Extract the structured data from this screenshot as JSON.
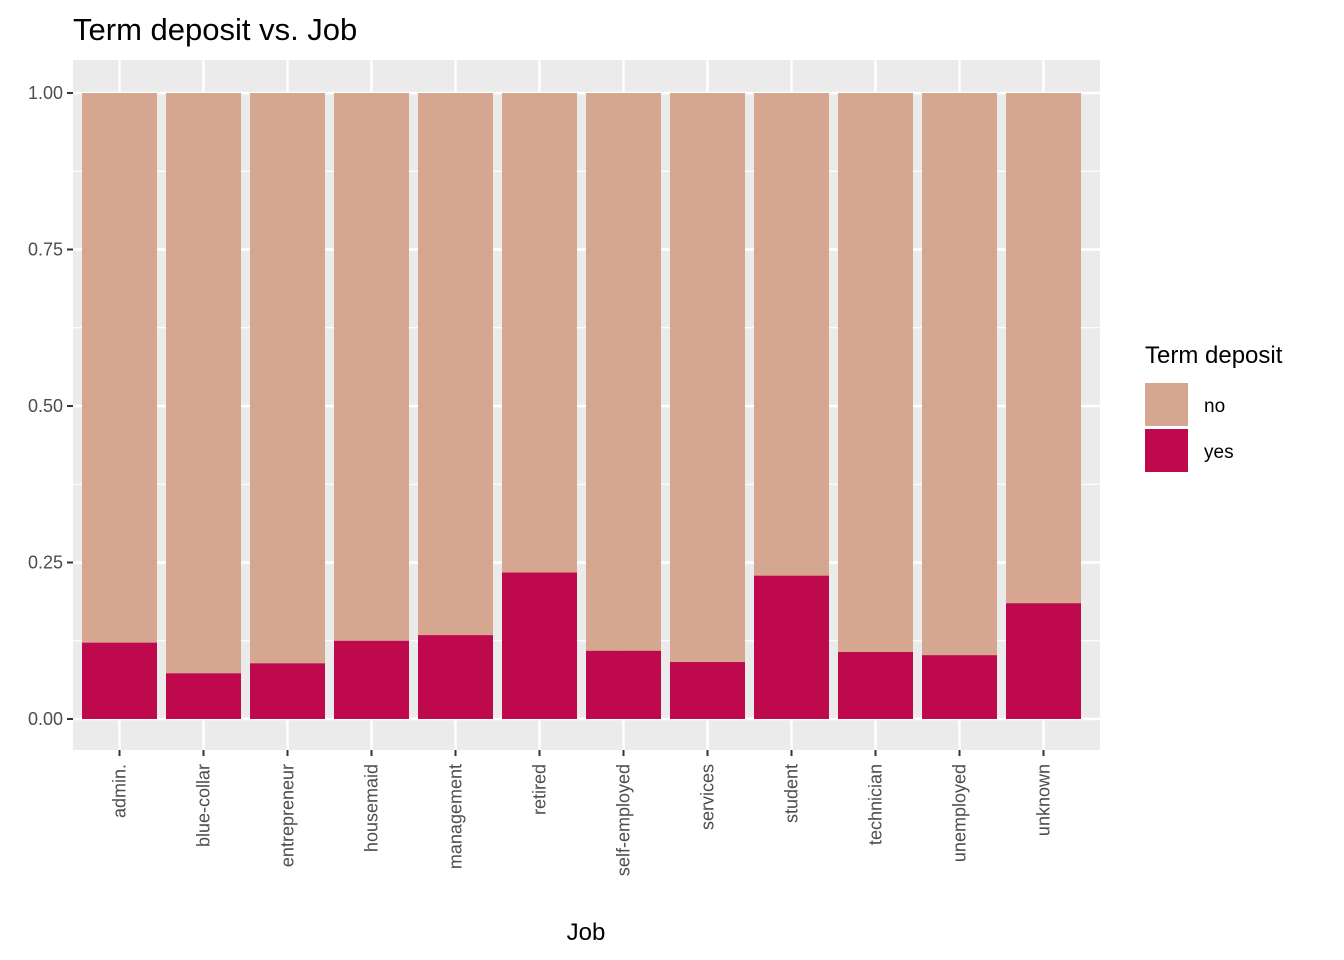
{
  "chart_data": {
    "type": "bar",
    "stacked": true,
    "title": "Term deposit vs. Job",
    "xlabel": "Job",
    "ylabel": "",
    "ylim": [
      0,
      1
    ],
    "yticks": [
      "0.00",
      "0.25",
      "0.50",
      "0.75",
      "1.00"
    ],
    "grid": true,
    "legend": {
      "title": "Term deposit",
      "position": "right"
    },
    "categories": [
      "admin.",
      "blue-collar",
      "entrepreneur",
      "housemaid",
      "management",
      "retired",
      "self-employed",
      "services",
      "student",
      "technician",
      "unemployed",
      "unknown"
    ],
    "series": [
      {
        "name": "no",
        "color": "#D5A690",
        "values": [
          0.878,
          0.927,
          0.911,
          0.875,
          0.866,
          0.766,
          0.891,
          0.909,
          0.771,
          0.893,
          0.898,
          0.815
        ]
      },
      {
        "name": "yes",
        "color": "#BE0A4C",
        "values": [
          0.122,
          0.073,
          0.089,
          0.125,
          0.134,
          0.234,
          0.109,
          0.091,
          0.229,
          0.107,
          0.102,
          0.185
        ]
      }
    ]
  }
}
